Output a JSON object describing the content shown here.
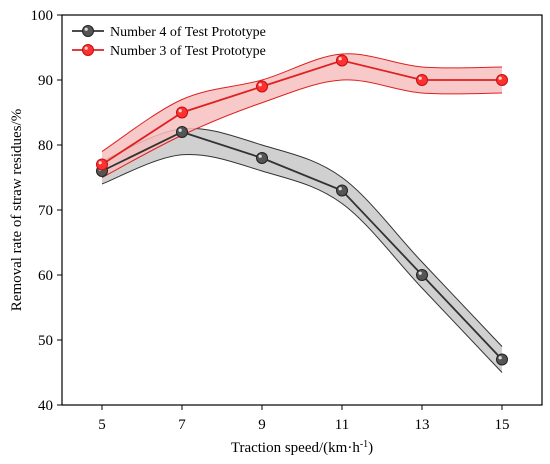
{
  "chart_data": {
    "type": "line",
    "title": "",
    "xlabel": "Traction speed/(km·h",
    "xlabel_sup": "-1",
    "xlabel_end": ")",
    "ylabel": "Removal rate of straw residues/%",
    "x": [
      5,
      7,
      9,
      11,
      13,
      15
    ],
    "xlim": [
      4,
      16
    ],
    "ylim": [
      40,
      100
    ],
    "xticks": [
      "5",
      "7",
      "9",
      "11",
      "13",
      "15"
    ],
    "yticks": [
      "40",
      "50",
      "60",
      "70",
      "80",
      "90",
      "100"
    ],
    "grid": false,
    "legend_position": "top-left",
    "series": [
      {
        "name": "Number 4 of Test Prototype",
        "values": [
          76,
          82,
          78,
          73,
          60,
          47
        ],
        "band_upper": [
          77.5,
          82.5,
          80,
          75,
          62,
          49
        ],
        "band_lower": [
          74,
          78.5,
          76,
          71,
          58,
          45
        ],
        "color": "#333333",
        "marker_color": "#555555",
        "band_color": "#c8c8c8"
      },
      {
        "name": "Number 3 of Test Prototype",
        "values": [
          77,
          85,
          89,
          93,
          90,
          90
        ],
        "band_upper": [
          79,
          87,
          90,
          94,
          92,
          92
        ],
        "band_lower": [
          75,
          81.5,
          86.5,
          90,
          88,
          88
        ],
        "color": "#e02020",
        "marker_color": "#ff3030",
        "band_color": "#f7c0c0"
      }
    ]
  }
}
